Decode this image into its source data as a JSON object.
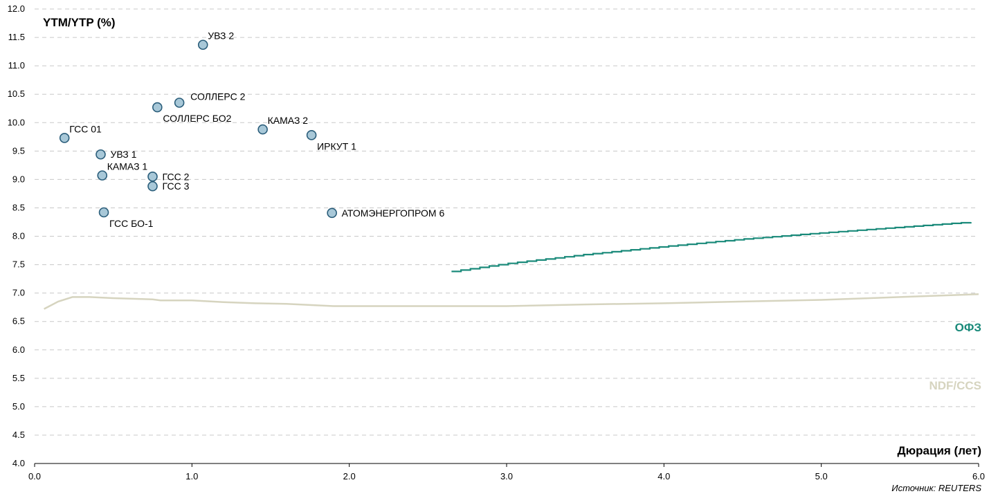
{
  "chart_data": {
    "type": "scatter",
    "ylabel": "YTM/YTP (%)",
    "xlabel": "Дюрация (лет)",
    "source": "Источник: REUTERS",
    "xlim": [
      0,
      6
    ],
    "ylim": [
      4,
      12
    ],
    "xticks": [
      "0.0",
      "1.0",
      "2.0",
      "3.0",
      "4.0",
      "5.0",
      "6.0"
    ],
    "yticks": [
      "4.0",
      "4.5",
      "5.0",
      "5.5",
      "6.0",
      "6.5",
      "7.0",
      "7.5",
      "8.0",
      "8.5",
      "9.0",
      "9.5",
      "10.0",
      "10.5",
      "11.0",
      "11.5",
      "12.0"
    ],
    "grid": "horizontal dashed",
    "colors": {
      "points_fill": "#a8c8d8",
      "points_stroke": "#2a5d7a",
      "ofz": "#1a8a7a",
      "ndf": "#d6d4bf"
    },
    "points": [
      {
        "name": "УВЗ 2",
        "x": 1.07,
        "y": 11.37,
        "label_pos": "upper-right"
      },
      {
        "name": "СОЛЛЕРС 2",
        "x": 0.92,
        "y": 10.35,
        "label_pos": "right-up"
      },
      {
        "name": "СОЛЛЕРС БО2",
        "x": 0.78,
        "y": 10.27,
        "label_pos": "below-right"
      },
      {
        "name": "КАМАЗ 2",
        "x": 1.45,
        "y": 9.88,
        "label_pos": "upper-right"
      },
      {
        "name": "ИРКУТ 1",
        "x": 1.76,
        "y": 9.78,
        "label_pos": "below-right"
      },
      {
        "name": "ГСС 01",
        "x": 0.19,
        "y": 9.73,
        "label_pos": "upper-right"
      },
      {
        "name": "УВЗ 1",
        "x": 0.42,
        "y": 9.44,
        "label_pos": "right"
      },
      {
        "name": "КАМАЗ 1",
        "x": 0.43,
        "y": 9.07,
        "label_pos": "upper-right"
      },
      {
        "name": "ГСС 2",
        "x": 0.75,
        "y": 9.05,
        "label_pos": "right"
      },
      {
        "name": "ГСС 3",
        "x": 0.75,
        "y": 8.88,
        "label_pos": "right"
      },
      {
        "name": "ГСС БО-1",
        "x": 0.44,
        "y": 8.42,
        "label_pos": "below-right"
      },
      {
        "name": "АТОМЭНЕРГОПРОМ 6",
        "x": 1.89,
        "y": 8.41,
        "label_pos": "right"
      }
    ],
    "series": [
      {
        "name": "ОФЗ",
        "style": "stepped",
        "x": [
          2.65,
          3.0,
          3.5,
          4.0,
          4.5,
          5.0,
          5.5,
          6.0
        ],
        "y": [
          7.38,
          7.52,
          7.68,
          7.82,
          7.95,
          8.06,
          8.16,
          8.26
        ]
      },
      {
        "name": "NDF/CCS",
        "style": "line",
        "x": [
          0.06,
          0.15,
          0.24,
          0.35,
          0.5,
          0.75,
          0.8,
          1.0,
          1.2,
          1.4,
          1.6,
          1.9,
          2.0,
          2.5,
          3.0,
          3.5,
          4.0,
          4.5,
          5.0,
          5.5,
          6.0
        ],
        "y": [
          6.72,
          6.85,
          6.93,
          6.93,
          6.91,
          6.89,
          6.87,
          6.87,
          6.84,
          6.82,
          6.81,
          6.77,
          6.77,
          6.77,
          6.77,
          6.8,
          6.82,
          6.85,
          6.88,
          6.93,
          6.98
        ]
      }
    ]
  }
}
